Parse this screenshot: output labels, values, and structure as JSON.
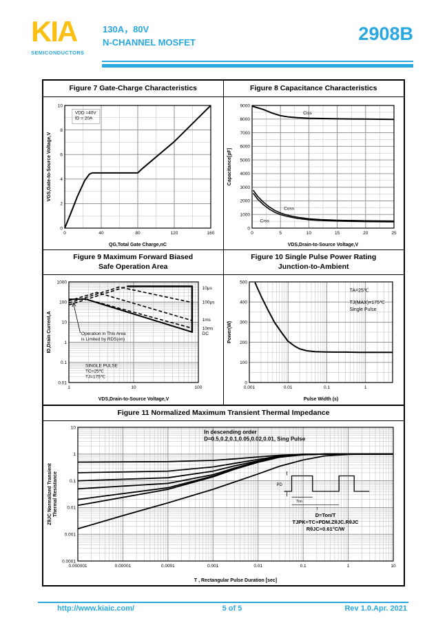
{
  "theme": {
    "accent": "#29A8DF",
    "logo_yellow": "#F9C013",
    "line_color": "#000000",
    "grid_minor": "#BBBBBB",
    "grid_major": "#888888"
  },
  "header": {
    "logo": "KIA",
    "logo_sub": "SEMICONDUCTORS",
    "part_rating": "130A，80V",
    "part_type": "N-CHANNEL MOSFET",
    "part_number": "2908B"
  },
  "footer": {
    "url": "http://www.kiaic.com/",
    "page": "5 of 5",
    "revision": "Rev 1.0.Apr. 2021"
  },
  "chart_data": [
    {
      "id": "figure7",
      "type": "line",
      "title": "Figure 7 Gate-Charge Characteristics",
      "xlabel": "QG,Total Gate Charge,nC",
      "ylabel": "VGS,Gate-to-Source Voltage,V",
      "xscale": "linear",
      "yscale": "linear",
      "xlim": [
        0,
        160
      ],
      "ylim": [
        0,
        10
      ],
      "xticks": [
        0,
        40,
        80,
        120,
        160
      ],
      "yticks": [
        0,
        2,
        4,
        6,
        8,
        10
      ],
      "xminor": 20,
      "yminor": 1,
      "grid": true,
      "legend": "none",
      "margin": {
        "l": 30,
        "r": 16,
        "t": 10,
        "b": 30
      },
      "annotations": [
        {
          "text": "VDD =40V\nID = 20A",
          "fx": 0.07,
          "fy": 0.07,
          "align": "start",
          "box": true
        }
      ],
      "series": [
        {
          "name": "gate-charge",
          "dash": false,
          "width": 2,
          "points": [
            [
              0,
              0
            ],
            [
              6,
              1.1
            ],
            [
              14,
              2.6
            ],
            [
              22,
              3.9
            ],
            [
              27,
              4.4
            ],
            [
              30,
              4.5
            ],
            [
              80,
              4.5
            ],
            [
              85,
              4.85
            ],
            [
              120,
              7.05
            ],
            [
              160,
              10
            ]
          ]
        }
      ]
    },
    {
      "id": "figure8",
      "type": "line",
      "title": "Figure 8 Capacitance Characteristics",
      "xlabel": "VDS,Drain-to-Source Voltage,V",
      "ylabel": "Capacitance[pF]",
      "xscale": "linear",
      "yscale": "linear",
      "xlim": [
        0,
        25
      ],
      "ylim": [
        0,
        9000
      ],
      "xticks": [
        0,
        5,
        10,
        15,
        20,
        25
      ],
      "yticks": [
        0,
        1000,
        2000,
        3000,
        4000,
        5000,
        6000,
        7000,
        8000,
        9000
      ],
      "xminor": 2.5,
      "yminor": 500,
      "grid": true,
      "legend": "inline",
      "margin": {
        "l": 40,
        "r": 12,
        "t": 10,
        "b": 30
      },
      "annotations": [
        {
          "text": "Ciss",
          "x": 9,
          "y": 8350,
          "align": "start"
        },
        {
          "text": "Coss",
          "x": 5.6,
          "y": 1350,
          "align": "start"
        },
        {
          "text": "Crss",
          "x": 1.4,
          "y": 420,
          "align": "start"
        }
      ],
      "series": [
        {
          "name": "Ciss",
          "dash": false,
          "width": 2,
          "points": [
            [
              0,
              8950
            ],
            [
              2,
              8700
            ],
            [
              3.5,
              8450
            ],
            [
              5,
              8250
            ],
            [
              6.5,
              8150
            ],
            [
              8,
              8100
            ],
            [
              10,
              8060
            ],
            [
              15,
              8020
            ],
            [
              20,
              8000
            ],
            [
              25,
              7980
            ]
          ]
        },
        {
          "name": "Coss",
          "dash": false,
          "width": 1.6,
          "points": [
            [
              0.2,
              2780
            ],
            [
              1,
              2320
            ],
            [
              2,
              1900
            ],
            [
              3,
              1560
            ],
            [
              4,
              1300
            ],
            [
              5,
              1110
            ],
            [
              6,
              980
            ],
            [
              7,
              880
            ],
            [
              8,
              800
            ],
            [
              10,
              690
            ],
            [
              12,
              630
            ],
            [
              15,
              580
            ],
            [
              20,
              540
            ],
            [
              25,
              520
            ]
          ]
        },
        {
          "name": "Crss",
          "dash": false,
          "width": 1.6,
          "points": [
            [
              0.2,
              2560
            ],
            [
              1,
              2120
            ],
            [
              2,
              1720
            ],
            [
              3,
              1400
            ],
            [
              4,
              1160
            ],
            [
              5,
              990
            ],
            [
              6,
              880
            ],
            [
              7,
              790
            ],
            [
              8,
              710
            ],
            [
              10,
              610
            ],
            [
              12,
              560
            ],
            [
              15,
              515
            ],
            [
              20,
              475
            ],
            [
              25,
              455
            ]
          ]
        }
      ]
    },
    {
      "id": "figure9",
      "type": "line",
      "title": "Figure 9   Maximum Forward Biased\nSafe Operation Area",
      "xlabel": "VDS,Drain-to-Source Voltage,V",
      "ylabel": "ID,Drain Current,A",
      "xscale": "log",
      "yscale": "log",
      "xlim": [
        1,
        100
      ],
      "ylim": [
        0.01,
        1000
      ],
      "xticks": [
        1,
        10,
        100
      ],
      "yticks": [
        0.01,
        0.1,
        1,
        10,
        100,
        1000
      ],
      "grid": true,
      "legend": "right-edge",
      "margin": {
        "l": 36,
        "r": 34,
        "t": 8,
        "b": 30
      },
      "annotations": [
        {
          "text": "10μs",
          "fx": 1.03,
          "y": 420,
          "align": "start"
        },
        {
          "text": "100μs",
          "fx": 1.03,
          "y": 85,
          "align": "start"
        },
        {
          "text": "1ms",
          "fx": 1.03,
          "y": 11,
          "align": "start"
        },
        {
          "text": "10ms",
          "fx": 1.03,
          "y": 4.2,
          "align": "start"
        },
        {
          "text": "DC",
          "fx": 1.03,
          "y": 2.3,
          "align": "start"
        },
        {
          "text": "Operation in This Area\nis Limited by RDS(on)",
          "x": 1.55,
          "y": 2.3,
          "align": "start"
        },
        {
          "text": "SINGLE PULSE\nTC=25℃\nTJ=175℃",
          "x": 1.8,
          "y": 0.06,
          "align": "start"
        }
      ],
      "arrows": [
        {
          "x1": 1.5,
          "y1": 2.9,
          "x2": 1.17,
          "y2": 90
        }
      ],
      "series": [
        {
          "name": "DC",
          "dash": false,
          "width": 2,
          "points": [
            [
              1,
              135
            ],
            [
              1.8,
              140
            ],
            [
              80,
              3.2
            ]
          ]
        },
        {
          "name": "10ms",
          "dash": true,
          "width": 1.6,
          "points": [
            [
              1.8,
              142
            ],
            [
              80,
              5
            ]
          ]
        },
        {
          "name": "1ms",
          "dash": true,
          "width": 1.6,
          "points": [
            [
              1,
              115
            ],
            [
              2.7,
              300
            ],
            [
              80,
              12
            ]
          ]
        },
        {
          "name": "100μs",
          "dash": true,
          "width": 1.6,
          "points": [
            [
              1,
              90
            ],
            [
              6,
              560
            ],
            [
              80,
              95
            ]
          ]
        },
        {
          "name": "10μs",
          "dash": true,
          "width": 1.6,
          "points": [
            [
              1,
              72
            ],
            [
              8,
              600
            ]
          ]
        },
        {
          "name": "current-limit",
          "dash": false,
          "width": 2.5,
          "points": [
            [
              8,
              600
            ],
            [
              80,
              600
            ],
            [
              80,
              3
            ]
          ]
        }
      ]
    },
    {
      "id": "figure10",
      "type": "line",
      "title": "Figure 10 Single Pulse Power Rating\nJunction-to-Ambient",
      "xlabel": "Pulse Width (s)",
      "ylabel": "Power(W)",
      "xscale": "log",
      "yscale": "linear",
      "xlim": [
        0.001,
        5
      ],
      "ylim": [
        0,
        500
      ],
      "xticks": [
        0.001,
        0.01,
        0.1,
        1
      ],
      "yticks": [
        0,
        100,
        200,
        300,
        400,
        500
      ],
      "yminor": 50,
      "grid": true,
      "legend": "none",
      "margin": {
        "l": 36,
        "r": 14,
        "t": 8,
        "b": 30
      },
      "annotations": [
        {
          "text": "TA=25℃",
          "fx": 0.7,
          "fy": 0.1,
          "align": "start",
          "size": 7
        },
        {
          "text": "TJ(MAX)=175℃\nSingle Pulse",
          "fx": 0.7,
          "fy": 0.22,
          "align": "start",
          "size": 7,
          "lh": 10
        }
      ],
      "series": [
        {
          "name": "single-pulse-power",
          "dash": false,
          "width": 2,
          "points": [
            [
              0.0014,
              497
            ],
            [
              0.002,
              430
            ],
            [
              0.003,
              362
            ],
            [
              0.0045,
              298
            ],
            [
              0.007,
              245
            ],
            [
              0.01,
              205
            ],
            [
              0.015,
              180
            ],
            [
              0.02,
              167
            ],
            [
              0.03,
              158
            ],
            [
              0.05,
              153
            ],
            [
              0.08,
              152
            ],
            [
              0.15,
              151
            ],
            [
              0.3,
              151
            ],
            [
              0.7,
              150
            ],
            [
              1.5,
              150
            ],
            [
              5,
              150
            ]
          ]
        }
      ]
    },
    {
      "id": "figure11",
      "type": "line",
      "title": "Figure 11     Normalized Maximum Transient Thermal Impedance",
      "xlabel": "T , Rectangular Pulse Duration [sec]",
      "ylabel": "ZθJC Normalized Transient\nThermal Resistance",
      "xscale": "log",
      "yscale": "log",
      "xlim": [
        1e-06,
        10
      ],
      "ylim": [
        0.0001,
        10
      ],
      "xticks": [
        1e-06,
        1e-05,
        0.0001,
        0.001,
        0.01,
        0.1,
        1,
        10
      ],
      "yticks": [
        0.0001,
        0.001,
        0.01,
        0.1,
        1,
        10
      ],
      "grid": true,
      "legend": "annotation",
      "margin": {
        "l": 48,
        "r": 14,
        "t": 8,
        "b": 34
      },
      "annotations": [
        {
          "text": "In  descending  order\nD=0.5,0.2,0.1,0.05,0.02,0.01, Sing Pulse",
          "fx": 0.4,
          "fy": 0.05,
          "align": "start",
          "size": 8,
          "bold": true,
          "lh": 10
        },
        {
          "text": "D=Ton/T\nTJPK=TC+PDM.ZθJC.RθJC\nRθJC=0.61°C/W",
          "fx": 0.785,
          "fy": 0.67,
          "align": "middle",
          "size": 7.5,
          "bold": true,
          "lh": 10
        }
      ],
      "pulse_inset": {
        "fx": 0.63,
        "fy": 0.33,
        "fw": 0.3,
        "fh": 0.24,
        "labels": {
          "amplitude": "PD",
          "on": "Ton",
          "period": "T"
        }
      },
      "series": [
        {
          "name": "D=0.5",
          "dash": false,
          "width": 1.8,
          "points": [
            [
              1e-06,
              0.5
            ],
            [
              0.0001,
              0.52
            ],
            [
              0.001,
              0.58
            ],
            [
              0.003,
              0.66
            ],
            [
              0.01,
              0.78
            ],
            [
              0.03,
              0.9
            ],
            [
              0.1,
              0.99
            ],
            [
              0.3,
              1
            ],
            [
              10,
              1
            ]
          ]
        },
        {
          "name": "D=0.2",
          "dash": false,
          "width": 1.8,
          "points": [
            [
              1e-06,
              0.2
            ],
            [
              0.0001,
              0.23
            ],
            [
              0.001,
              0.33
            ],
            [
              0.003,
              0.45
            ],
            [
              0.01,
              0.63
            ],
            [
              0.03,
              0.84
            ],
            [
              0.1,
              0.97
            ],
            [
              0.3,
              1
            ],
            [
              10,
              1
            ]
          ]
        },
        {
          "name": "D=0.1",
          "dash": false,
          "width": 1.8,
          "points": [
            [
              1e-06,
              0.1
            ],
            [
              0.0001,
              0.13
            ],
            [
              0.001,
              0.23
            ],
            [
              0.003,
              0.36
            ],
            [
              0.01,
              0.56
            ],
            [
              0.03,
              0.8
            ],
            [
              0.1,
              0.96
            ],
            [
              0.3,
              1
            ],
            [
              10,
              1
            ]
          ]
        },
        {
          "name": "D=0.05",
          "dash": false,
          "width": 1.8,
          "points": [
            [
              1e-06,
              0.05
            ],
            [
              0.0001,
              0.08
            ],
            [
              0.001,
              0.17
            ],
            [
              0.003,
              0.3
            ],
            [
              0.01,
              0.52
            ],
            [
              0.03,
              0.78
            ],
            [
              0.1,
              0.95
            ],
            [
              0.3,
              1
            ],
            [
              10,
              1
            ]
          ]
        },
        {
          "name": "D=0.02",
          "dash": false,
          "width": 1.8,
          "points": [
            [
              1e-06,
              0.02
            ],
            [
              0.0001,
              0.055
            ],
            [
              0.001,
              0.15
            ],
            [
              0.003,
              0.28
            ],
            [
              0.01,
              0.5
            ],
            [
              0.03,
              0.77
            ],
            [
              0.1,
              0.95
            ],
            [
              0.3,
              1
            ],
            [
              10,
              1
            ]
          ]
        },
        {
          "name": "D=0.01",
          "dash": false,
          "width": 1.8,
          "points": [
            [
              1e-06,
              0.012
            ],
            [
              0.0001,
              0.048
            ],
            [
              0.001,
              0.14
            ],
            [
              0.003,
              0.27
            ],
            [
              0.01,
              0.49
            ],
            [
              0.03,
              0.76
            ],
            [
              0.1,
              0.94
            ],
            [
              0.3,
              1
            ],
            [
              10,
              1
            ]
          ]
        },
        {
          "name": "Single Pulse",
          "dash": false,
          "width": 1.8,
          "points": [
            [
              1e-06,
              0.0016
            ],
            [
              1e-05,
              0.005
            ],
            [
              0.0001,
              0.015
            ],
            [
              0.001,
              0.048
            ],
            [
              0.003,
              0.09
            ],
            [
              0.01,
              0.18
            ],
            [
              0.03,
              0.35
            ],
            [
              0.1,
              0.6
            ],
            [
              0.3,
              0.85
            ],
            [
              1,
              0.97
            ],
            [
              3,
              1
            ],
            [
              10,
              1
            ]
          ]
        }
      ]
    }
  ]
}
